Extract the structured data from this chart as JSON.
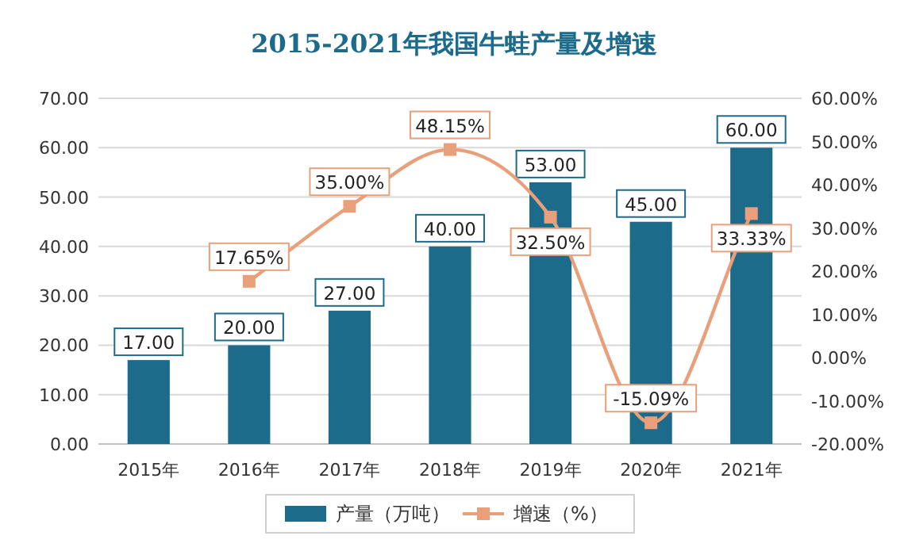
{
  "chart_data": {
    "type": "bar",
    "title": "2015-2021年我国牛蛙产量及增速",
    "categories": [
      "2015年",
      "2016年",
      "2017年",
      "2018年",
      "2019年",
      "2020年",
      "2021年"
    ],
    "series": [
      {
        "name": "产量（万吨）",
        "color": "#1d6b8b",
        "values": [
          17,
          20,
          27,
          40,
          53,
          45,
          60
        ],
        "value_labels": [
          "17.00",
          "20.00",
          "27.00",
          "40.00",
          "53.00",
          "45.00",
          "60.00"
        ]
      },
      {
        "name": "增速（%）",
        "type": "line",
        "axis": "y2",
        "color": "#e9a07a",
        "values": [
          null,
          17.65,
          35.0,
          48.15,
          32.5,
          -15.09,
          33.33
        ],
        "value_labels": [
          null,
          "17.65%",
          "35.00%",
          "48.15%",
          "32.50%",
          "-15.09%",
          "33.33%"
        ]
      }
    ],
    "ylim": [
      0,
      70
    ],
    "yticks": [
      {
        "value": 0,
        "label": "0.00"
      },
      {
        "value": 10,
        "label": "10.00"
      },
      {
        "value": 20,
        "label": "20.00"
      },
      {
        "value": 30,
        "label": "30.00"
      },
      {
        "value": 40,
        "label": "40.00"
      },
      {
        "value": 50,
        "label": "50.00"
      },
      {
        "value": 60,
        "label": "60.00"
      },
      {
        "value": 70,
        "label": "70.00"
      }
    ],
    "y2lim": [
      -20,
      60
    ],
    "y2ticks": [
      {
        "value": -20,
        "label": "-20.00%"
      },
      {
        "value": -10,
        "label": "-10.00%"
      },
      {
        "value": 0,
        "label": "0.00%"
      },
      {
        "value": 10,
        "label": "10.00%"
      },
      {
        "value": 20,
        "label": "20.00%"
      },
      {
        "value": 30,
        "label": "30.00%"
      },
      {
        "value": 40,
        "label": "40.00%"
      },
      {
        "value": 50,
        "label": "50.00%"
      },
      {
        "value": 60,
        "label": "60.00%"
      }
    ],
    "grid": "y",
    "legend": "bottom",
    "marker": "square"
  }
}
